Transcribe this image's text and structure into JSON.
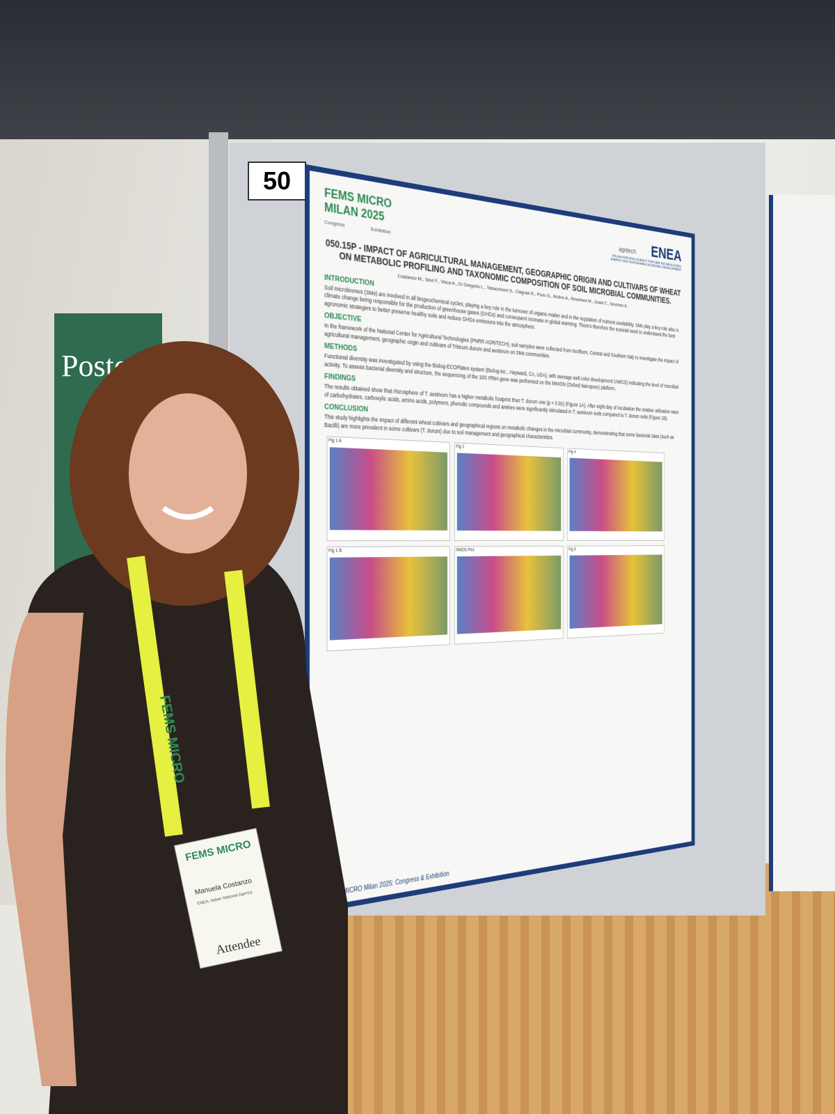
{
  "board": {
    "number": "50"
  },
  "background_sign": "Poste",
  "poster": {
    "logo": {
      "name": "FEMS MICRO",
      "edition": "MILAN 2025",
      "left": "Congress",
      "right": "Exhibition"
    },
    "partners": {
      "agritech": "agritech",
      "enea": "ENEA",
      "enea_full": "ITALIAN NATIONAL AGENCY FOR NEW TECHNOLOGIES, ENERGY AND SUSTAINABLE ECONOMIC DEVELOPMENT"
    },
    "title": "050.15P - IMPACT OF AGRICULTURAL MANAGEMENT, GEOGRAPHIC ORIGIN AND CULTIVARS OF WHEAT ON METABOLIC PROFILING AND TAXONOMIC COMPOSITION OF SOIL MICROBIAL COMMUNITIES.",
    "authors": "Costanzo M., Sevi F., Visca A., Di Gregorio L., Tabacchioni S., Clagnan E., Puzo G., Molino A., Reverberi M., Zoani C., Sevivino A.",
    "sections": [
      {
        "heading": "INTRODUCTION",
        "text": "Soil microbiomes (SMs) are involved in all biogeochemical cycles, playing a key role in the turnover of organic matter and in the regulation of nutrient availability. SMs play a key role also in climate change being responsible for the production of greenhouse gases (GHGs) and consequent increase in global warming. There's therefore the societal need to understand the best agronomic strategies to better preserve healthy soils and reduce GHGs emissions into the atmosphere."
      },
      {
        "heading": "OBJECTIVE",
        "text": "In the framework of the National Center for Agricultural Technologies (PNRR AGRITECH), soil samples were collected from Northern, Central and Southern Italy to investigate the impact of agricultural management, geographic origin and cultivars of Triticum durum and aestivum on SMs communities."
      },
      {
        "heading": "METHODS",
        "text": "Functional diversity was investigated by using the Biolog-ECOPlates system (Biolog Inc., Hayward, CA, USA), with average well color development (AWCD) indicating the level of microbial activity. To assess bacterial diversity and structure, the sequencing of the 16S rRNA gene was performed on the MinION (Oxford Nanopore) platform."
      },
      {
        "heading": "FINDINGS",
        "text": "The results obtained show that rhizosphere of T. aestivum has a higher metabolic footprint than T. durum one (p < 0.01) (Figure 1A). After eight day of incubation the relative utilization rates of carbohydrates, carboxylic acids, amino acids, polymers, phenolic compounds and amines were significantly stimulated in T. aestivum soils compared to T. durum soils (Figure 1B)."
      },
      {
        "heading": "CONCLUSION",
        "text": "This study highlights the impact of different wheat cultivars and geographical regions on metabolic changes in the microbial community, demonstrating that some bacterial class (such as Bacilli) are more prevalent in some cultivars (T. durum) due to soil management and geographical characteristics."
      }
    ],
    "figures": [
      "Fig 1 A",
      "Fig 2",
      "Fig 4",
      "Fig 1 B",
      "NMDS Plot",
      "Fig 5"
    ],
    "footer": "FEMS MICRO Milan 2025: Congress & Exhibition"
  },
  "badge": {
    "event": "FEMS MICRO",
    "name": "Manuela Costanzo",
    "org": "ENEA, Italian National Agency",
    "role": "Attendee"
  },
  "lanyard": "FEMS MICRO"
}
